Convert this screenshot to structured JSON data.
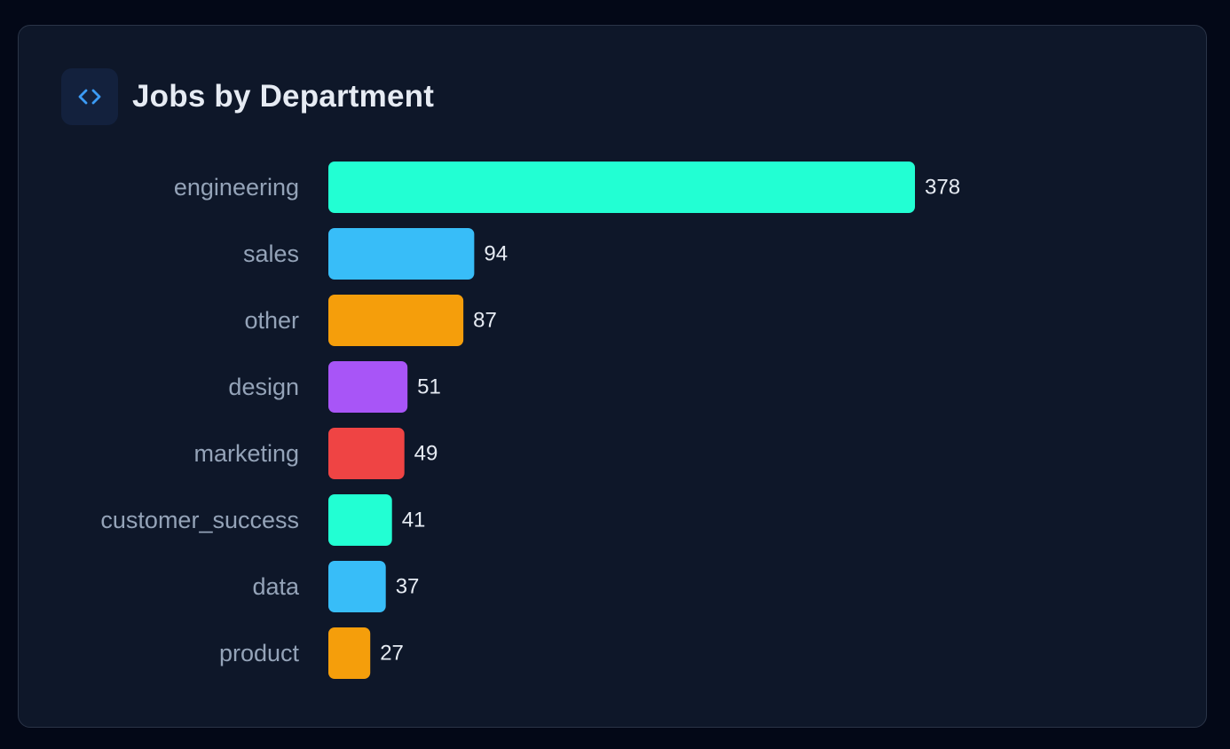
{
  "header": {
    "title": "Jobs by Department",
    "icon": "code-icon",
    "icon_color": "#3b9bf5"
  },
  "chart_data": {
    "type": "bar",
    "orientation": "horizontal",
    "title": "Jobs by Department",
    "xlabel": "",
    "ylabel": "",
    "grid": false,
    "legend": "none",
    "xlim": [
      0,
      378
    ],
    "categories": [
      "engineering",
      "sales",
      "other",
      "design",
      "marketing",
      "customer_success",
      "data",
      "product"
    ],
    "values": [
      378,
      94,
      87,
      51,
      49,
      41,
      37,
      27
    ],
    "colors": [
      "#22ffd3",
      "#38bdf8",
      "#f59e0b",
      "#a855f7",
      "#ef4444",
      "#22ffd3",
      "#38bdf8",
      "#f59e0b"
    ],
    "label_color": "#94a3b8",
    "value_label_color": "#e6ebf3"
  }
}
